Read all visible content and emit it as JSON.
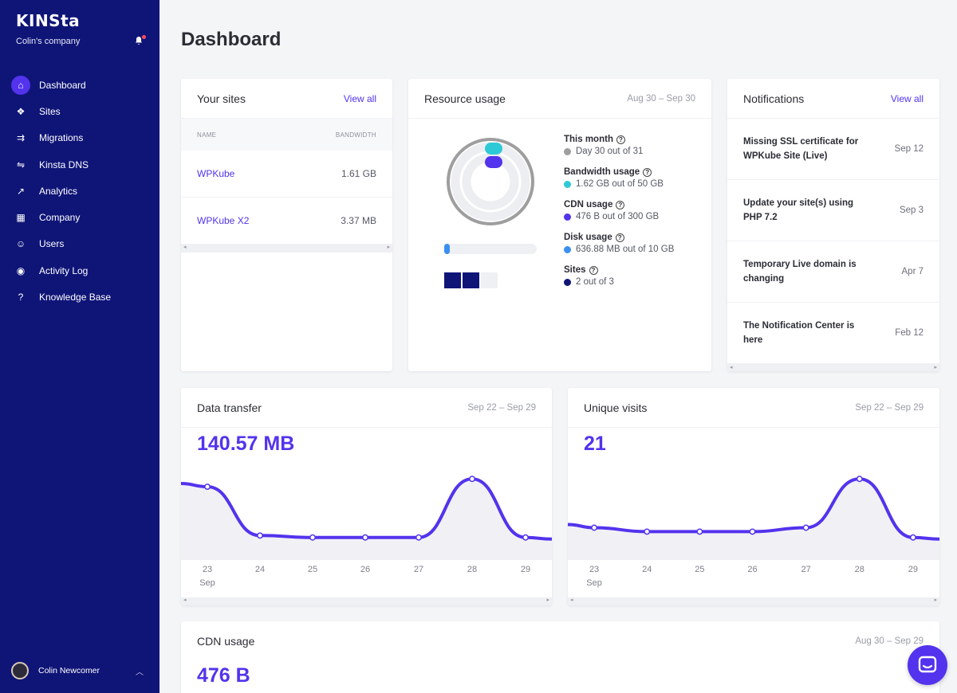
{
  "brand": "KINSta",
  "company_name": "Colin's company",
  "nav": [
    {
      "label": "Dashboard",
      "icon": "home-icon",
      "glyph": "⌂"
    },
    {
      "label": "Sites",
      "icon": "sites-icon",
      "glyph": "❖"
    },
    {
      "label": "Migrations",
      "icon": "migrations-icon",
      "glyph": "⇉"
    },
    {
      "label": "Kinsta DNS",
      "icon": "dns-icon",
      "glyph": "⇋"
    },
    {
      "label": "Analytics",
      "icon": "analytics-icon",
      "glyph": "↗"
    },
    {
      "label": "Company",
      "icon": "company-icon",
      "glyph": "▦"
    },
    {
      "label": "Users",
      "icon": "users-icon",
      "glyph": "☺"
    },
    {
      "label": "Activity Log",
      "icon": "eye-icon",
      "glyph": "◉"
    },
    {
      "label": "Knowledge Base",
      "icon": "help-icon",
      "glyph": "?"
    }
  ],
  "user_name": "Colin Newcomer",
  "page_title": "Dashboard",
  "sites": {
    "title": "Your sites",
    "view_all": "View all",
    "col_name": "NAME",
    "col_bandwidth": "BANDWIDTH",
    "rows": [
      {
        "name": "WPKube",
        "bandwidth": "1.61 GB"
      },
      {
        "name": "WPKube X2",
        "bandwidth": "3.37 MB"
      }
    ]
  },
  "resource": {
    "title": "Resource usage",
    "date": "Aug 30 – Sep 30",
    "items": [
      {
        "title": "This month",
        "value": "Day 30 out of 31",
        "color": "#9e9e9e"
      },
      {
        "title": "Bandwidth usage",
        "value": "1.62 GB out of 50 GB",
        "color": "#2ec9d6"
      },
      {
        "title": "CDN usage",
        "value": "476 B out of 300 GB",
        "color": "#5333ed"
      },
      {
        "title": "Disk usage",
        "value": "636.88 MB out of 10 GB",
        "color": "#3b8ff0"
      },
      {
        "title": "Sites",
        "value": "2 out of 3",
        "color": "#0f1577"
      }
    ],
    "help_glyph": "?",
    "disk_fraction": 0.06,
    "sites_used": 2,
    "sites_total": 3
  },
  "notifications": {
    "title": "Notifications",
    "view_all": "View all",
    "items": [
      {
        "text": "Missing SSL certificate for WPKube Site (Live)",
        "date": "Sep 12"
      },
      {
        "text": "Update your site(s) using PHP 7.2",
        "date": "Sep 3"
      },
      {
        "text": "Temporary Live domain is changing",
        "date": "Apr 7"
      },
      {
        "text": "The Notification Center is here",
        "date": "Feb 12"
      }
    ]
  },
  "data_transfer": {
    "title": "Data transfer",
    "date": "Sep 22 – Sep 29",
    "total": "140.57 MB",
    "x_labels": [
      "23",
      "24",
      "25",
      "26",
      "27",
      "28",
      "29"
    ],
    "month_label": "Sep"
  },
  "unique_visits": {
    "title": "Unique visits",
    "date": "Sep 22 – Sep 29",
    "total": "21",
    "x_labels": [
      "23",
      "24",
      "25",
      "26",
      "27",
      "28",
      "29"
    ],
    "month_label": "Sep"
  },
  "cdn": {
    "title": "CDN usage",
    "date": "Aug 30 – Sep 29",
    "total": "476 B"
  },
  "chart_data": [
    {
      "type": "area",
      "title": "Data transfer",
      "x": [
        "23",
        "24",
        "25",
        "26",
        "27",
        "28",
        "29"
      ],
      "series": [
        {
          "values": [
            31,
            6,
            5,
            5,
            5,
            35,
            5
          ]
        }
      ],
      "ylim": [
        0,
        40
      ]
    },
    {
      "type": "area",
      "title": "Unique visits",
      "x": [
        "23",
        "24",
        "25",
        "26",
        "27",
        "28",
        "29"
      ],
      "series": [
        {
          "values": [
            1,
            0.8,
            0.8,
            0.8,
            1,
            3.5,
            0.5
          ]
        }
      ],
      "ylim": [
        0,
        4
      ]
    }
  ]
}
